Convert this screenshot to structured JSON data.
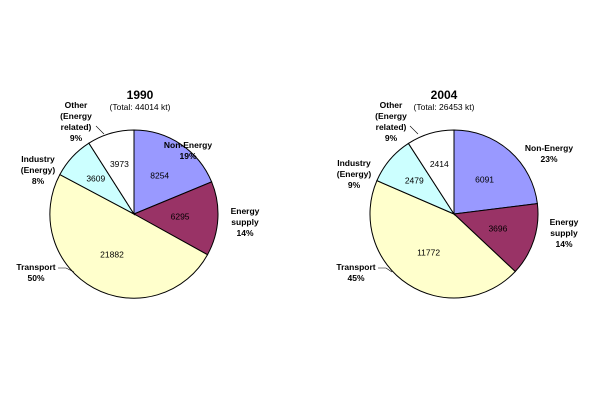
{
  "chart_data": [
    {
      "type": "pie",
      "title": "1990",
      "subtitle": "(Total: 44014 kt)",
      "slices": [
        {
          "category": "Non-Energy",
          "value": 8254,
          "percent": "19%",
          "color": "#9999ff"
        },
        {
          "category": "Energy supply",
          "value": 6295,
          "percent": "14%",
          "color": "#993366"
        },
        {
          "category": "Transport",
          "value": 21882,
          "percent": "50%",
          "color": "#ffffcc"
        },
        {
          "category": "Industry (Energy)",
          "value": 3609,
          "percent": "8%",
          "color": "#ccffff"
        },
        {
          "category": "Other (Energy related)",
          "value": 3973,
          "percent": "9%",
          "color": "#ffffff"
        }
      ],
      "labels": {
        "non_energy": [
          "Non-Energy",
          "19%"
        ],
        "energy_supply": [
          "Energy",
          "supply",
          "14%"
        ],
        "transport": [
          "Transport",
          "50%"
        ],
        "industry": [
          "Industry",
          "(Energy)",
          "8%"
        ],
        "other": [
          "Other",
          "(Energy",
          "related)",
          "9%"
        ]
      }
    },
    {
      "type": "pie",
      "title": "2004",
      "subtitle": "(Total: 26453 kt)",
      "slices": [
        {
          "category": "Non-Energy",
          "value": 6091,
          "percent": "23%",
          "color": "#9999ff"
        },
        {
          "category": "Energy supply",
          "value": 3696,
          "percent": "14%",
          "color": "#993366"
        },
        {
          "category": "Transport",
          "value": 11772,
          "percent": "45%",
          "color": "#ffffcc"
        },
        {
          "category": "Industry (Energy)",
          "value": 2479,
          "percent": "9%",
          "color": "#ccffff"
        },
        {
          "category": "Other (Energy related)",
          "value": 2414,
          "percent": "9%",
          "color": "#ffffff"
        }
      ],
      "labels": {
        "non_energy": [
          "Non-Energy",
          "23%"
        ],
        "energy_supply": [
          "Energy",
          "supply",
          "14%"
        ],
        "transport": [
          "Transport",
          "45%"
        ],
        "industry": [
          "Industry",
          "(Energy)",
          "9%"
        ],
        "other": [
          "Other",
          "(Energy",
          "related)",
          "9%"
        ]
      }
    }
  ]
}
